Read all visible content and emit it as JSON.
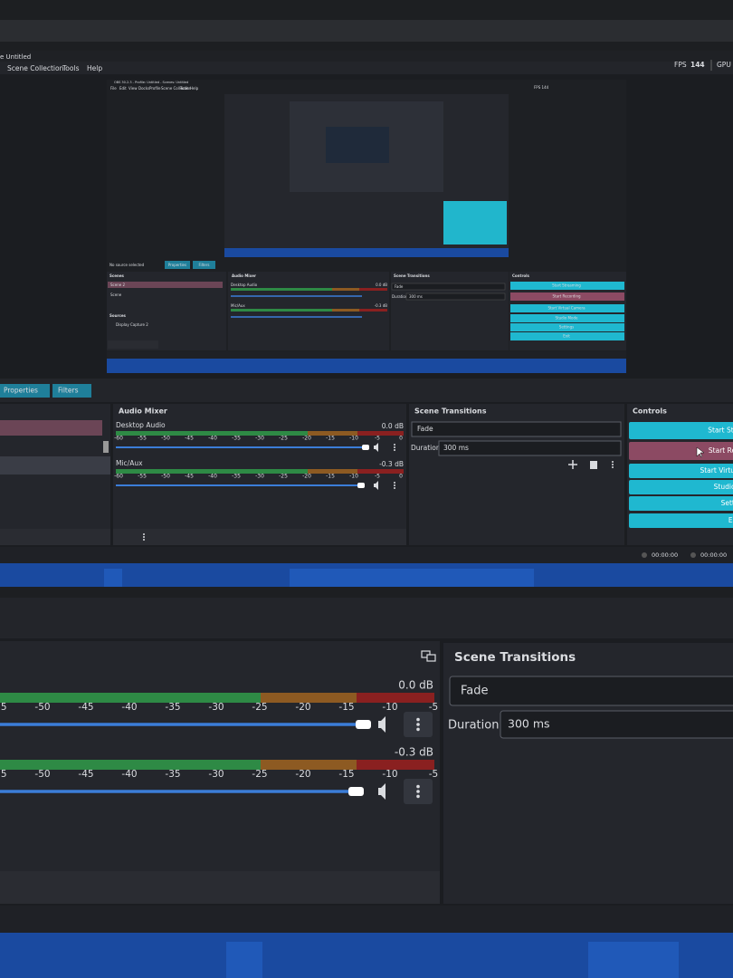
{
  "window": {
    "title": "e Untitled",
    "menu": [
      "Scene Collection",
      "Tools",
      "Help"
    ],
    "fps_label": "FPS",
    "fps": "144",
    "gpu": "GPU"
  },
  "preview": {
    "title": "OBS 30.2.3 - Profile: Untitled - Scenes: Untitled",
    "menu": [
      "File",
      "Edit",
      "View",
      "Docks",
      "Profile",
      "Scene Collection",
      "Tools",
      "Help"
    ],
    "fps": "FPS 144",
    "no_source": "No source selected",
    "properties": "Properties",
    "filters": "Filters",
    "scenes_title": "Scenes",
    "scenes": [
      "Scene 2",
      "Scene"
    ],
    "sources_title": "Sources",
    "sources": [
      "Display Capture 2"
    ],
    "audio_title": "Audio Mixer",
    "channels": [
      {
        "name": "Desktop Audio",
        "level": "0.0 dB"
      },
      {
        "name": "Mic/Aux",
        "level": "-0.3 dB"
      }
    ],
    "transitions_title": "Scene Transitions",
    "transition": "Fade",
    "duration_label": "Duration",
    "duration": "300 ms",
    "controls_title": "Controls",
    "buttons": [
      "Start Streaming",
      "Start Recording",
      "Start Virtual Camera",
      "Studio Mode",
      "Settings",
      "Exit"
    ]
  },
  "toolbar": {
    "properties": "Properties",
    "filters": "Filters"
  },
  "audio_mixer": {
    "title": "Audio Mixer",
    "channels": [
      {
        "name": "Desktop Audio",
        "level": "0.0 dB"
      },
      {
        "name": "Mic/Aux",
        "level": "-0.3 dB"
      }
    ],
    "scale": [
      "-60",
      "-55",
      "-50",
      "-45",
      "-40",
      "-35",
      "-30",
      "-25",
      "-20",
      "-15",
      "-10",
      "-5",
      "0"
    ]
  },
  "scene_transitions": {
    "title": "Scene Transitions",
    "transition": "Fade",
    "duration_label": "Duration",
    "duration": "300 ms"
  },
  "controls": {
    "title": "Controls",
    "buttons": [
      "Start Streaming",
      "Start Recording",
      "Start Virtual Camera",
      "Studio Mode",
      "Settings",
      "Exit"
    ]
  },
  "status": {
    "stream_time": "00:00:00",
    "record_time": "00:00:00"
  }
}
